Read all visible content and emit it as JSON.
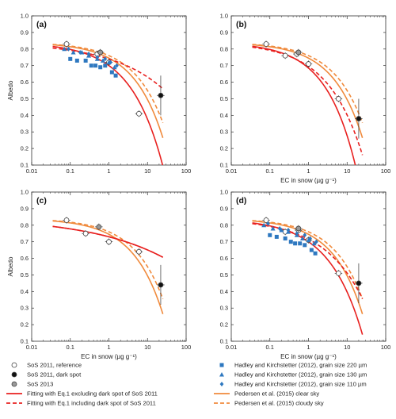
{
  "chart_data": [
    {
      "panel_label": "(a)",
      "type": "scatter",
      "xlabel": "",
      "ylabel": "Albedo",
      "xscale": "log",
      "xlim": [
        0.01,
        100
      ],
      "ylim": [
        0.1,
        1.0
      ],
      "x_ticks": [
        "0.01",
        "0.1",
        "1",
        "10",
        "100"
      ],
      "y_ticks": [
        "0.1",
        "0.2",
        "0.3",
        "0.4",
        "0.5",
        "0.6",
        "0.7",
        "0.8",
        "0.9",
        "1.0"
      ],
      "series": [
        {
          "key": "sos2011_ref",
          "points": [
            [
              0.08,
              0.83
            ],
            [
              0.5,
              0.77
            ],
            [
              1.0,
              0.72
            ],
            [
              6.0,
              0.41
            ]
          ]
        },
        {
          "key": "sos2011_dark",
          "points": [
            [
              22,
              0.52
            ]
          ]
        },
        {
          "key": "sos2013",
          "points": [
            [
              0.6,
              0.78
            ]
          ]
        },
        {
          "key": "hk220",
          "points": [
            [
              0.1,
              0.74
            ],
            [
              0.15,
              0.73
            ],
            [
              0.25,
              0.73
            ],
            [
              0.35,
              0.7
            ],
            [
              0.45,
              0.7
            ],
            [
              0.6,
              0.69
            ],
            [
              0.8,
              0.7
            ],
            [
              1.2,
              0.66
            ],
            [
              1.5,
              0.64
            ]
          ]
        },
        {
          "key": "hk130",
          "points": [
            [
              0.07,
              0.8
            ],
            [
              0.12,
              0.78
            ],
            [
              0.2,
              0.78
            ],
            [
              0.3,
              0.76
            ],
            [
              0.5,
              0.74
            ],
            [
              0.7,
              0.73
            ],
            [
              1.0,
              0.72
            ],
            [
              1.4,
              0.69
            ]
          ]
        },
        {
          "key": "hk110",
          "points": [
            [
              0.09,
              0.8
            ],
            [
              0.18,
              0.78
            ],
            [
              0.3,
              0.77
            ],
            [
              0.5,
              0.75
            ],
            [
              0.8,
              0.74
            ],
            [
              1.1,
              0.72
            ],
            [
              1.6,
              0.7
            ]
          ]
        }
      ]
    },
    {
      "panel_label": "(b)",
      "type": "scatter",
      "xlabel": "EC in snow (µg g⁻¹)",
      "ylabel": "",
      "xscale": "log",
      "xlim": [
        0.01,
        100
      ],
      "ylim": [
        0.1,
        1.0
      ],
      "x_ticks": [
        "0.01",
        "0.1",
        "1",
        "10",
        "100"
      ],
      "y_ticks": [
        "0.1",
        "0.2",
        "0.3",
        "0.4",
        "0.5",
        "0.6",
        "0.7",
        "0.8",
        "0.9",
        "1.0"
      ],
      "series": [
        {
          "key": "sos2011_ref",
          "points": [
            [
              0.08,
              0.83
            ],
            [
              0.25,
              0.76
            ],
            [
              0.5,
              0.77
            ],
            [
              1.0,
              0.71
            ],
            [
              6.0,
              0.5
            ]
          ]
        },
        {
          "key": "sos2011_dark",
          "points": [
            [
              20,
              0.38
            ]
          ]
        },
        {
          "key": "sos2013",
          "points": [
            [
              0.55,
              0.78
            ]
          ]
        }
      ]
    },
    {
      "panel_label": "(c)",
      "type": "scatter",
      "xlabel": "EC in snow (µg g⁻¹)",
      "ylabel": "Albedo",
      "xscale": "log",
      "xlim": [
        0.01,
        100
      ],
      "ylim": [
        0.1,
        1.0
      ],
      "x_ticks": [
        "0.01",
        "0.1",
        "1",
        "10",
        "100"
      ],
      "y_ticks": [
        "0.1",
        "0.2",
        "0.3",
        "0.4",
        "0.5",
        "0.6",
        "0.7",
        "0.8",
        "0.9",
        "1.0"
      ],
      "series": [
        {
          "key": "sos2011_ref",
          "points": [
            [
              0.08,
              0.83
            ],
            [
              0.25,
              0.75
            ],
            [
              1.0,
              0.7
            ],
            [
              6.0,
              0.64
            ]
          ]
        },
        {
          "key": "sos2011_dark",
          "points": [
            [
              22,
              0.44
            ]
          ]
        },
        {
          "key": "sos2013",
          "points": [
            [
              0.55,
              0.79
            ]
          ]
        }
      ]
    },
    {
      "panel_label": "(d)",
      "type": "scatter",
      "xlabel": "EC in snow (µg g⁻¹)",
      "ylabel": "",
      "xscale": "log",
      "xlim": [
        0.01,
        100
      ],
      "ylim": [
        0.1,
        1.0
      ],
      "x_ticks": [
        "0.01",
        "0.1",
        "1",
        "10",
        "100"
      ],
      "y_ticks": [
        "0.1",
        "0.2",
        "0.3",
        "0.4",
        "0.5",
        "0.6",
        "0.7",
        "0.8",
        "0.9",
        "1.0"
      ],
      "series": [
        {
          "key": "sos2011_ref",
          "points": [
            [
              0.08,
              0.83
            ],
            [
              0.25,
              0.76
            ],
            [
              0.55,
              0.77
            ],
            [
              1.0,
              0.71
            ],
            [
              6.0,
              0.51
            ]
          ]
        },
        {
          "key": "sos2011_dark",
          "points": [
            [
              20,
              0.45
            ]
          ]
        },
        {
          "key": "sos2013",
          "points": [
            [
              0.55,
              0.78
            ]
          ]
        },
        {
          "key": "hk220",
          "points": [
            [
              0.1,
              0.74
            ],
            [
              0.15,
              0.73
            ],
            [
              0.25,
              0.72
            ],
            [
              0.35,
              0.7
            ],
            [
              0.45,
              0.69
            ],
            [
              0.6,
              0.69
            ],
            [
              0.8,
              0.68
            ],
            [
              1.2,
              0.65
            ],
            [
              1.5,
              0.63
            ]
          ]
        },
        {
          "key": "hk130",
          "points": [
            [
              0.07,
              0.8
            ],
            [
              0.12,
              0.78
            ],
            [
              0.2,
              0.77
            ],
            [
              0.3,
              0.76
            ],
            [
              0.5,
              0.74
            ],
            [
              0.7,
              0.72
            ],
            [
              1.0,
              0.71
            ],
            [
              1.4,
              0.69
            ]
          ]
        },
        {
          "key": "hk110",
          "points": [
            [
              0.09,
              0.81
            ],
            [
              0.18,
              0.78
            ],
            [
              0.3,
              0.77
            ],
            [
              0.5,
              0.75
            ],
            [
              0.8,
              0.74
            ],
            [
              1.1,
              0.72
            ],
            [
              1.6,
              0.7
            ]
          ]
        }
      ]
    }
  ],
  "legend": [
    {
      "key": "sos2011_ref",
      "label": "SoS 2011, reference",
      "marker": "circle-open",
      "color": "#444444"
    },
    {
      "key": "sos2011_dark",
      "label": "SoS 2011, dark spot",
      "marker": "circle-filled",
      "color": "#111111"
    },
    {
      "key": "sos2013",
      "label": "SoS 2013",
      "marker": "circle-gray",
      "color": "#999999"
    },
    {
      "key": "fit_excl",
      "label": "Fitting with Eq.1 excluding dark spot of SoS 2011",
      "line": "solid",
      "color": "#e8201f"
    },
    {
      "key": "fit_incl",
      "label": "Fitting with Eq.1 including dark spot of SoS 2011",
      "line": "dashed",
      "color": "#e8201f"
    },
    {
      "key": "hk220",
      "label": "Hadley and Kirchstetter (2012), grain size 220 µm",
      "marker": "square",
      "color": "#2e78c0"
    },
    {
      "key": "hk130",
      "label": "Hadley and Kirchstetter (2012), grain size 130 µm",
      "marker": "triangle",
      "color": "#2e78c0"
    },
    {
      "key": "hk110",
      "label": "Hadley and Kirchstetter (2012), grain size 110 µm",
      "marker": "diamond",
      "color": "#2e78c0"
    },
    {
      "key": "ped_clear",
      "label": "Pedersen et al. (2015) clear sky",
      "line": "solid",
      "color": "#f08a3c"
    },
    {
      "key": "ped_cloudy",
      "label": "Pedersen et al. (2015) cloudy sky",
      "line": "dashed",
      "color": "#f08a3c"
    }
  ]
}
